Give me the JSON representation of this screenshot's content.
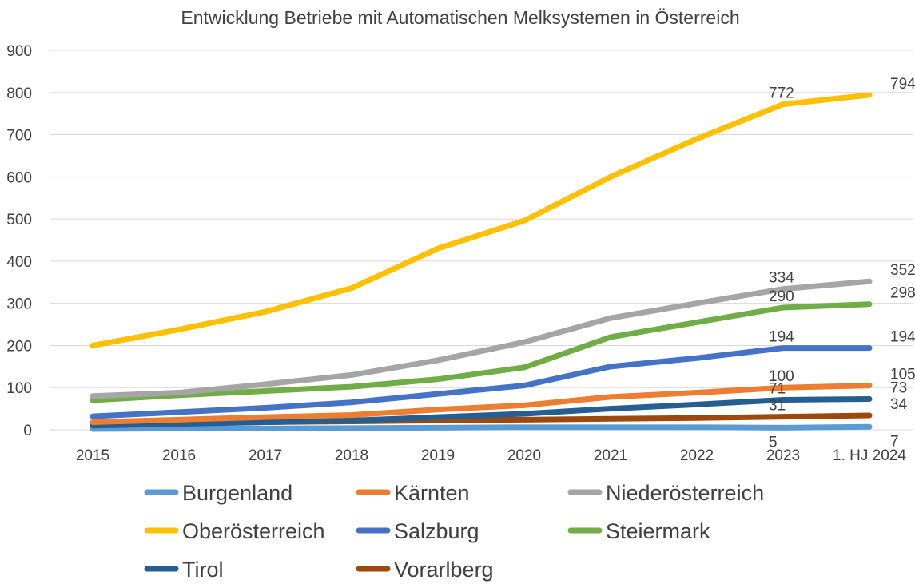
{
  "chart_data": {
    "type": "line",
    "title": "Entwicklung Betriebe mit Automatischen Melksystemen in Österreich",
    "xlabel": "",
    "ylabel": "",
    "ylim": [
      0,
      900
    ],
    "yticks": [
      0,
      100,
      200,
      300,
      400,
      500,
      600,
      700,
      800,
      900
    ],
    "grid": true,
    "legend_position": "bottom",
    "categories": [
      "2015",
      "2016",
      "2017",
      "2018",
      "2019",
      "2020",
      "2021",
      "2022",
      "2023",
      "1. HJ 2024"
    ],
    "series": [
      {
        "name": "Burgenland",
        "color": "#5B9BD5",
        "values": [
          2,
          3,
          3,
          4,
          5,
          6,
          6,
          6,
          5,
          7
        ],
        "labels": [
          "5",
          "7"
        ]
      },
      {
        "name": "Kärnten",
        "color": "#ED7D31",
        "values": [
          18,
          24,
          30,
          35,
          48,
          58,
          78,
          88,
          100,
          105
        ],
        "labels": [
          "100",
          "105"
        ]
      },
      {
        "name": "Niederösterreich",
        "color": "#A5A5A5",
        "values": [
          80,
          88,
          108,
          130,
          165,
          208,
          265,
          300,
          334,
          352
        ],
        "labels": [
          "334",
          "352"
        ]
      },
      {
        "name": "Oberösterreich",
        "color": "#FFC000",
        "values": [
          200,
          238,
          280,
          336,
          430,
          496,
          600,
          690,
          772,
          794
        ],
        "labels": [
          "772",
          "794"
        ]
      },
      {
        "name": "Salzburg",
        "color": "#4472C4",
        "values": [
          32,
          42,
          52,
          65,
          85,
          105,
          150,
          170,
          194,
          194
        ],
        "labels": [
          "194",
          "194"
        ]
      },
      {
        "name": "Steiermark",
        "color": "#70AD47",
        "values": [
          70,
          82,
          92,
          102,
          120,
          148,
          220,
          255,
          290,
          298
        ],
        "labels": [
          "290",
          "298"
        ]
      },
      {
        "name": "Tirol",
        "color": "#255E91",
        "values": [
          10,
          14,
          18,
          22,
          30,
          38,
          50,
          60,
          71,
          73
        ],
        "labels": [
          "71",
          "73"
        ]
      },
      {
        "name": "Vorarlberg",
        "color": "#9E480E",
        "values": [
          12,
          15,
          18,
          20,
          22,
          24,
          26,
          28,
          31,
          34
        ],
        "labels": [
          "31",
          "34"
        ]
      }
    ]
  }
}
